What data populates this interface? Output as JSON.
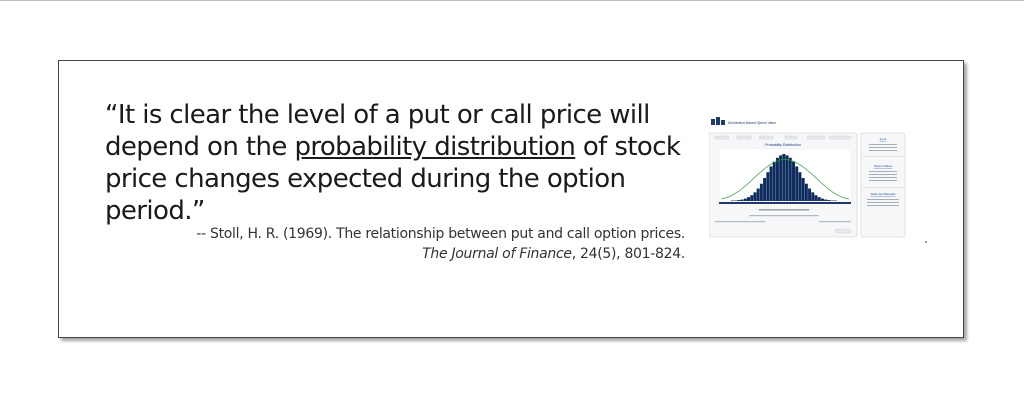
{
  "quote": {
    "before": "“It is clear the level of a put or call price will depend on the ",
    "link": "probability distribution",
    "after": " of stock price changes expected during the option period.”"
  },
  "citation": {
    "line1": "-- Stoll, H. R. (1969). The relationship between put and call option prices.",
    "journal": "The Journal of Finance",
    "rest": ", 24(5), 801-824."
  },
  "thumbnail": {
    "app_title": "Distribution-Based Option Value",
    "chart_title": "Probability Distribution",
    "panel_input": "Input",
    "panel_output": "Option Values",
    "panel_risk": "Risks and Benefits",
    "accent": "#1f3b6e",
    "bar_color": "#0d2a5c",
    "curve_color": "#2e9b3a",
    "link_color": "#1f4fa0"
  },
  "chart_data": {
    "type": "bar",
    "title": "Probability Distribution",
    "values": [
      1,
      1,
      2,
      3,
      5,
      8,
      12,
      18,
      26,
      36,
      48,
      60,
      72,
      82,
      90,
      95,
      98,
      95,
      90,
      82,
      72,
      60,
      48,
      36,
      26,
      18,
      12,
      8,
      5,
      3,
      2,
      1,
      1
    ],
    "curve": [
      4,
      6,
      9,
      13,
      18,
      24,
      31,
      38,
      46,
      54,
      61,
      68,
      74,
      79,
      83,
      86,
      87,
      86,
      83,
      79,
      74,
      68,
      61,
      54,
      46,
      38,
      31,
      24,
      18,
      13,
      9,
      6,
      4
    ]
  }
}
